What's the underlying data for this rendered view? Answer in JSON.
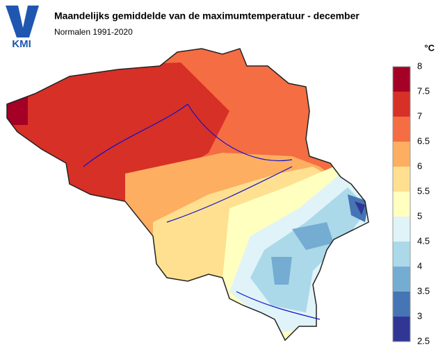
{
  "header": {
    "logo": "KMI",
    "title": "Maandelijks gemiddelde van de maximumtemperatuur - december",
    "subtitle": "Normalen 1991-2020"
  },
  "legend": {
    "unit": "°C",
    "ticks": [
      8,
      7.5,
      7,
      6.5,
      6,
      5.5,
      5,
      4.5,
      4,
      3.5,
      3,
      2.5
    ],
    "colors": [
      "#a50026",
      "#d73027",
      "#f46d43",
      "#fdae61",
      "#fee090",
      "#ffffbf",
      "#e0f3f8",
      "#abd9e9",
      "#74add1",
      "#4575b4",
      "#313695"
    ]
  }
}
